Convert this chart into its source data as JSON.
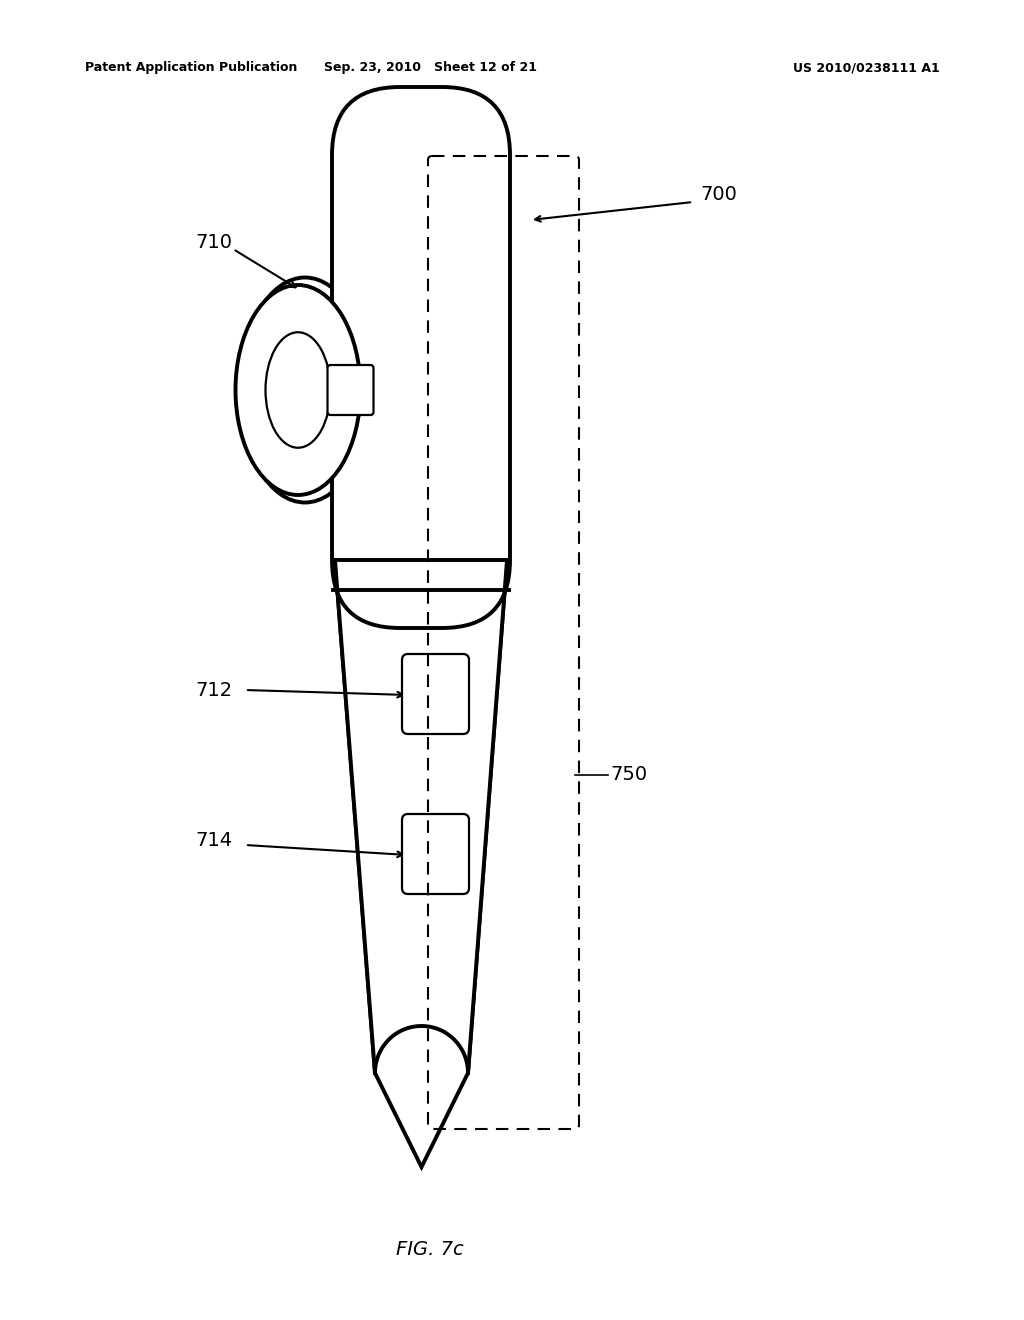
{
  "title_left": "Patent Application Publication",
  "title_center": "Sep. 23, 2010   Sheet 12 of 21",
  "title_right": "US 2010/0238111 A1",
  "fig_label": "FIG. 7c",
  "bg_color": "#ffffff",
  "line_color": "#000000",
  "text_color": "#000000",
  "lw_main": 2.8,
  "lw_thin": 1.6,
  "lw_dash": 1.5
}
